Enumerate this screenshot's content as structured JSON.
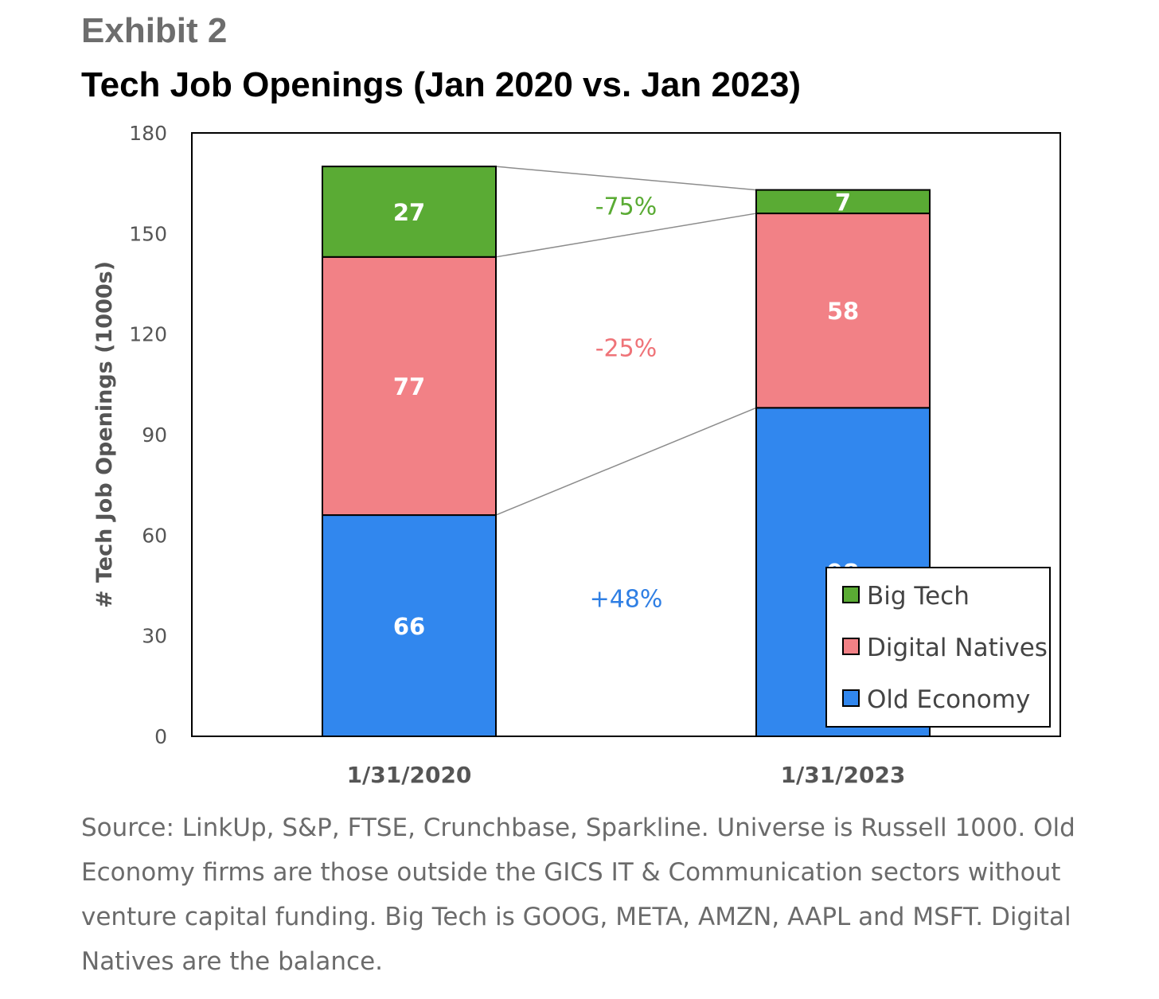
{
  "header": {
    "exhibit": "Exhibit 2",
    "title": "Tech Job Openings (Jan 2020 vs. Jan 2023)"
  },
  "chart_data": {
    "type": "bar",
    "stacked": true,
    "categories": [
      "1/31/2020",
      "1/31/2023"
    ],
    "series": [
      {
        "name": "Old Economy",
        "values": [
          66,
          98
        ],
        "color": "#3187ee",
        "change": "+48%"
      },
      {
        "name": "Digital Natives",
        "values": [
          77,
          58
        ],
        "color": "#f28186",
        "change": "-25%"
      },
      {
        "name": "Big Tech",
        "values": [
          27,
          7
        ],
        "color": "#5aab34",
        "change": "-75%"
      }
    ],
    "legend_order": [
      "Big Tech",
      "Digital Natives",
      "Old Economy"
    ],
    "ylabel": "# Tech Job Openings (1000s)",
    "xlabel": "",
    "ylim": [
      0,
      180
    ],
    "yticks": [
      0,
      30,
      60,
      90,
      120,
      150,
      180
    ],
    "grid": false,
    "legend_position": "bottom-right",
    "change_colors": {
      "Old Economy": "#2f7fe4",
      "Digital Natives": "#ef7378",
      "Big Tech": "#5aab34"
    }
  },
  "note": "Source: LinkUp, S&P, FTSE, Crunchbase, Sparkline. Universe is Russell 1000. Old Economy firms are those outside the GICS IT & Communication sectors without venture capital funding. Big Tech is GOOG, META, AMZN, AAPL and MSFT. Digital Natives are the balance."
}
